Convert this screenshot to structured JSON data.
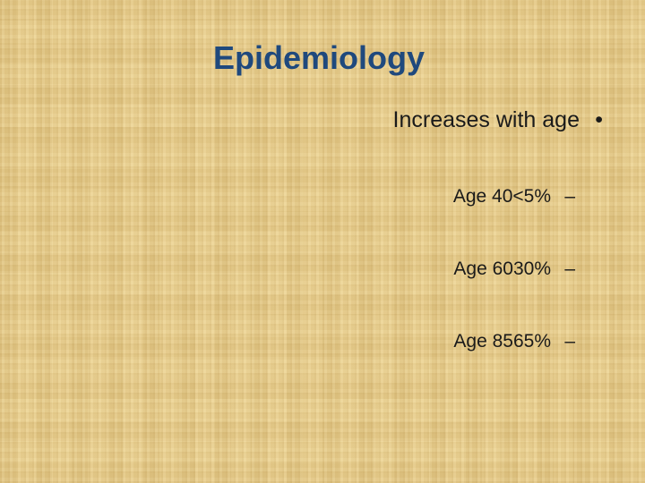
{
  "title": "Epidemiology",
  "bullet": {
    "text": "Increases with age",
    "marker": "•"
  },
  "items": [
    {
      "text": "Age 40<5%",
      "marker": "–"
    },
    {
      "text": "Age 6030%",
      "marker": "–"
    },
    {
      "text": "Age 8565%",
      "marker": "–"
    }
  ]
}
